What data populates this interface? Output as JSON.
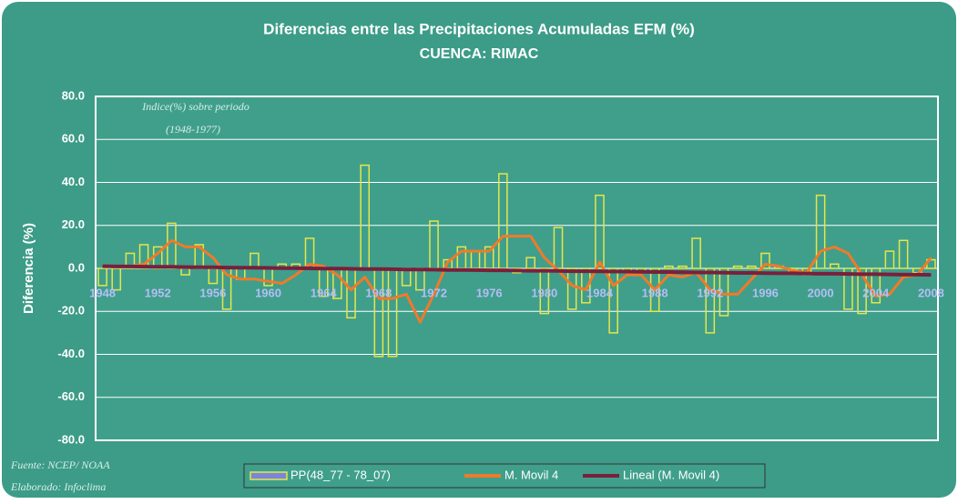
{
  "chart_data": {
    "type": "bar",
    "title": "Diferencias entre las Precipitaciones Acumuladas EFM (%)",
    "subtitle": "CUENCA: RIMAC",
    "y_label": "Diferencia (%)",
    "annotations": [
      "Indice(%) sobre periodo",
      "(1948-1977)",
      "Fuente: NCEP/ NOAA",
      "Elaborado: Infoclima"
    ],
    "categories": [
      "1948",
      null,
      null,
      null,
      "1952",
      null,
      null,
      null,
      "1956",
      null,
      null,
      null,
      "1960",
      null,
      null,
      null,
      "1964",
      null,
      null,
      null,
      "1968",
      null,
      null,
      null,
      "1972",
      null,
      null,
      null,
      "1976",
      null,
      null,
      null,
      "1980",
      null,
      null,
      null,
      "1984",
      null,
      null,
      null,
      "1988",
      null,
      null,
      null,
      "1992",
      null,
      null,
      null,
      "1996",
      null,
      null,
      null,
      "2000",
      null,
      null,
      null,
      "2004",
      null,
      null,
      null,
      "2008"
    ],
    "series": [
      {
        "name": "PP(48_77 - 78_07)",
        "type": "bar",
        "color": "#e6e64a",
        "values": [
          -8,
          -10,
          7,
          11,
          10,
          21,
          -3,
          11,
          -7,
          -19,
          -5,
          7,
          -8,
          2,
          2,
          14,
          -13,
          -14,
          -23,
          48,
          -41,
          -41,
          -8,
          -10,
          22,
          4,
          10,
          8,
          10,
          44,
          -2,
          5,
          -21,
          19,
          -19,
          -16,
          34,
          -30,
          -2,
          -2,
          -20,
          1,
          1,
          14,
          -30,
          -22,
          1,
          1,
          7,
          1,
          -2,
          -3,
          34,
          2,
          -19,
          -21,
          -16,
          8,
          13,
          -2,
          4
        ]
      },
      {
        "name": "M. Movil 4",
        "type": "line",
        "color": "#f07a2a",
        "values": [
          1,
          1,
          1,
          2,
          7,
          13,
          10,
          10,
          5,
          -3,
          -5,
          -5,
          -6,
          -7,
          -3,
          2,
          1,
          -3,
          -10,
          -4,
          -14,
          -14,
          -12,
          -25,
          -12,
          3,
          8,
          8,
          8,
          15,
          15,
          15,
          5,
          -1,
          -8,
          -10,
          3,
          -8,
          -3,
          -3,
          -10,
          -3,
          -4,
          -2,
          -10,
          -12,
          -12,
          -5,
          2,
          1,
          -1,
          -2,
          8,
          10,
          7,
          -3,
          -13,
          -12,
          -4,
          -3,
          5
        ]
      },
      {
        "name": "Lineal (M. Movil 4)",
        "type": "line",
        "color": "#7a1f3d",
        "values": [
          1.0,
          0.9,
          0.9,
          0.8,
          0.7,
          0.7,
          0.6,
          0.5,
          0.5,
          0.4,
          0.3,
          0.3,
          0.2,
          0.1,
          0.1,
          0.0,
          -0.1,
          -0.1,
          -0.2,
          -0.3,
          -0.3,
          -0.4,
          -0.5,
          -0.5,
          -0.6,
          -0.7,
          -0.7,
          -0.8,
          -0.9,
          -0.9,
          -1.0,
          -1.1,
          -1.1,
          -1.2,
          -1.3,
          -1.3,
          -1.4,
          -1.5,
          -1.5,
          -1.6,
          -1.7,
          -1.7,
          -1.8,
          -1.9,
          -1.9,
          -2.0,
          -2.1,
          -2.1,
          -2.2,
          -2.3,
          -2.3,
          -2.4,
          -2.5,
          -2.5,
          -2.6,
          -2.7,
          -2.7,
          -2.8,
          -2.9,
          -2.9,
          -3.0
        ]
      }
    ],
    "ylim": [
      -80,
      80
    ],
    "yticks": [
      {
        "value": -80,
        "label": "-80.0"
      },
      {
        "value": -60,
        "label": "-60.0"
      },
      {
        "value": -40,
        "label": "-40.0"
      },
      {
        "value": -20,
        "label": "-20.0"
      },
      {
        "value": 0,
        "label": "0.0"
      },
      {
        "value": 20,
        "label": "20.0"
      },
      {
        "value": 40,
        "label": "40.0"
      },
      {
        "value": 60,
        "label": "60.0"
      },
      {
        "value": 80,
        "label": "80.0"
      }
    ],
    "grid": true,
    "legend": "bottom"
  }
}
